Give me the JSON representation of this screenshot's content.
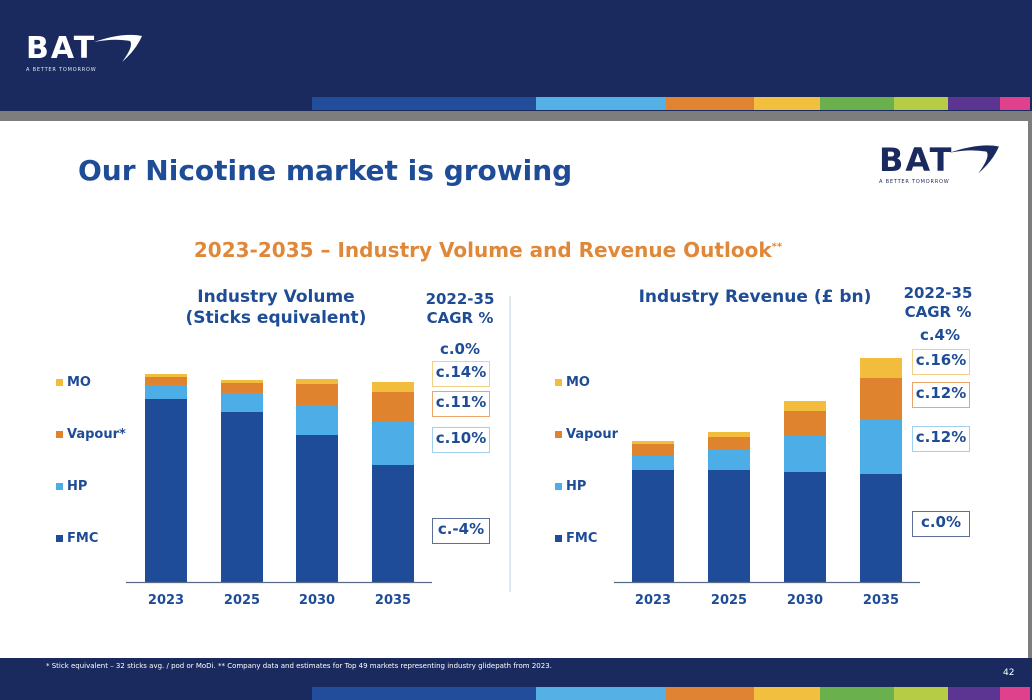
{
  "header": {
    "logo_text": "BAT",
    "logo_tagline": "A BETTER TOMORROW",
    "color_strip": [
      "#224d9b",
      "#55b0e6",
      "#e08433",
      "#f2bf3f",
      "#6ab04c",
      "#b6cc45",
      "#5b3591",
      "#e0418c"
    ]
  },
  "page": {
    "title": "Our Nicotine market is growing",
    "section_title": "2023-2035 – Industry Volume and Revenue Outlook",
    "section_title_mark": "**",
    "corner_logo_text": "BAT",
    "corner_logo_tagline": "A BETTER TOMORROW"
  },
  "colors": {
    "FMC": "#1f4c99",
    "HP": "#4dade6",
    "Vapour": "#e0832f",
    "MO": "#f2bd3c",
    "title_blue": "#1e4c96",
    "accent_orange": "#e0883a"
  },
  "chart_data": [
    {
      "type": "bar",
      "stacked": true,
      "title": "Industry Volume (Sticks equivalent)",
      "title_lines": [
        "Industry Volume",
        "(Sticks equivalent)"
      ],
      "xlabel": "",
      "ylabel": "",
      "value_units": "relative index (axis not shown; estimated from bar heights)",
      "categories": [
        "2023",
        "2025",
        "2030",
        "2035"
      ],
      "ylim": [
        0,
        215
      ],
      "grid": false,
      "legend": {
        "position": "left",
        "entries": [
          "MO",
          "Vapour*",
          "HP",
          "FMC"
        ]
      },
      "series": [
        {
          "name": "FMC",
          "values": [
            183,
            170,
            147,
            117
          ]
        },
        {
          "name": "HP",
          "values": [
            14,
            19,
            30,
            43
          ]
        },
        {
          "name": "Vapour*",
          "values": [
            8,
            10,
            21,
            30
          ]
        },
        {
          "name": "MO",
          "values": [
            3,
            3,
            5,
            10
          ]
        }
      ],
      "cagr": {
        "header_lines": [
          "2022-35",
          "CAGR %"
        ],
        "total": "c.0%",
        "by_series": [
          {
            "name": "MO",
            "value": "c.14%",
            "border": "#f2cf86"
          },
          {
            "name": "Vapour*",
            "value": "c.11%",
            "border": "#eaa56a"
          },
          {
            "name": "HP",
            "value": "c.10%",
            "border": "#9fd0ee"
          },
          {
            "name": "FMC",
            "value": "c.-4%",
            "border": "#5d6f98"
          }
        ]
      }
    },
    {
      "type": "bar",
      "stacked": true,
      "title": "Industry Revenue (£ bn)",
      "title_lines": [
        "Industry Revenue (£ bn)"
      ],
      "xlabel": "",
      "ylabel": "",
      "value_units": "relative index (axis not shown; estimated from bar heights)",
      "categories": [
        "2023",
        "2025",
        "2030",
        "2035"
      ],
      "ylim": [
        0,
        235
      ],
      "grid": false,
      "legend": {
        "position": "left",
        "entries": [
          "MO",
          "Vapour",
          "HP",
          "FMC"
        ]
      },
      "series": [
        {
          "name": "FMC",
          "values": [
            112,
            112,
            110,
            108
          ]
        },
        {
          "name": "HP",
          "values": [
            15,
            20,
            36,
            54
          ]
        },
        {
          "name": "Vapour",
          "values": [
            11,
            13,
            25,
            42
          ]
        },
        {
          "name": "MO",
          "values": [
            3,
            5,
            10,
            20
          ]
        }
      ],
      "cagr": {
        "header_lines": [
          "2022-35",
          "CAGR %"
        ],
        "total": "c.4%",
        "by_series": [
          {
            "name": "MO",
            "value": "c.16%",
            "border": "#f2cf86"
          },
          {
            "name": "Vapour",
            "value": "c.12%",
            "border": "#eaa56a"
          },
          {
            "name": "HP",
            "value": "c.12%",
            "border": "#9fd0ee"
          },
          {
            "name": "FMC",
            "value": "c.0%",
            "border": "#5d6f98"
          }
        ]
      }
    }
  ],
  "footer": {
    "footnote": "* Stick equivalent – 32 sticks avg. / pod or MoDi. ** Company data and estimates for Top 49 markets representing industry glidepath from 2023.",
    "page_number": "42"
  }
}
